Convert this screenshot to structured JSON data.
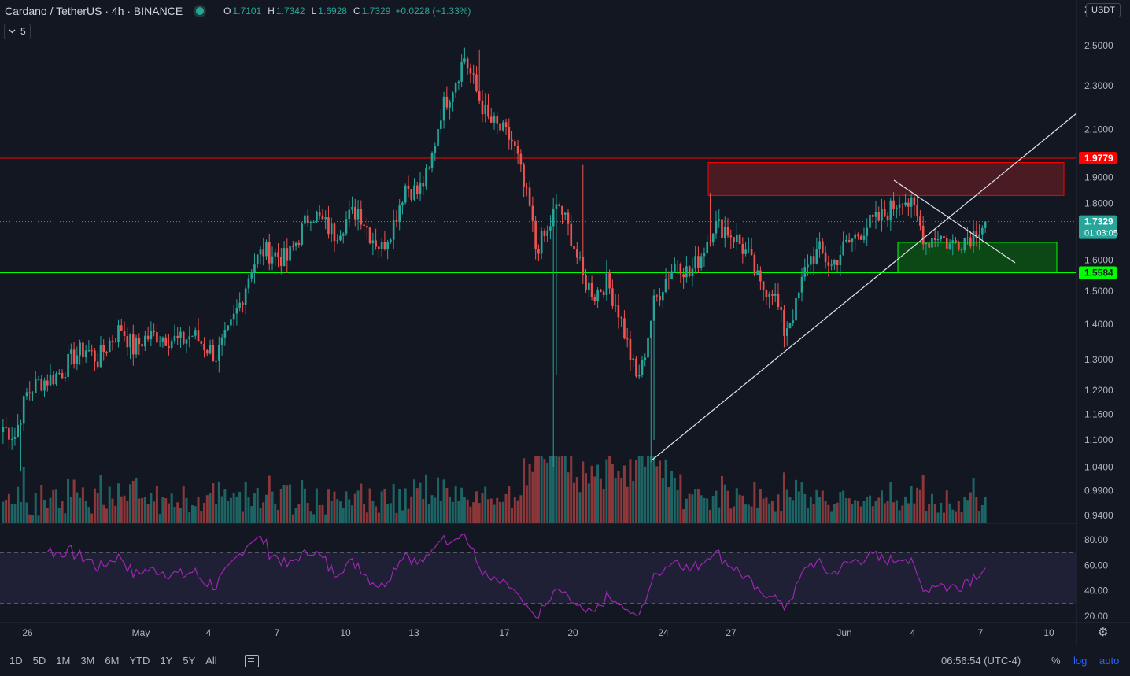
{
  "legend": {
    "symbol": "Cardano / TetherUS · 4h · BINANCE",
    "o_label": "O",
    "o_value": "1.7101",
    "h_label": "H",
    "h_value": "1.7342",
    "l_label": "L",
    "l_value": "1.6928",
    "c_label": "C",
    "c_value": "1.7329",
    "change": "+0.0228 (+1.33%)"
  },
  "volume_badge": "5",
  "currency_button": "USDT",
  "axis_top_label": "2",
  "price_axis": {
    "ticks": [
      "2.5000",
      "2.3000",
      "2.1000",
      "1.9000",
      "1.8000",
      "1.6000",
      "1.5000",
      "1.4000",
      "1.3000",
      "1.2200",
      "1.1600",
      "1.1000",
      "1.0400",
      "0.9900",
      "0.9400"
    ],
    "tick_values": [
      2.5,
      2.3,
      2.1,
      1.9,
      1.8,
      1.6,
      1.5,
      1.4,
      1.3,
      1.22,
      1.16,
      1.1,
      1.04,
      0.99,
      0.94
    ],
    "scale": "log"
  },
  "price_labels": {
    "resistance": "1.9779",
    "current_price": "1.7329",
    "countdown": "01:03:05",
    "support": "1.5584"
  },
  "rsi_axis": {
    "ticks": [
      "80.00",
      "60.00",
      "40.00",
      "20.00"
    ],
    "tick_values": [
      80,
      60,
      40,
      20
    ],
    "upper": 70,
    "lower": 30
  },
  "time_axis": [
    "26",
    "May",
    "4",
    "7",
    "10",
    "13",
    "17",
    "20",
    "24",
    "27",
    "Jun",
    "4",
    "7",
    "10"
  ],
  "bottom_bar": {
    "ranges": [
      "1D",
      "5D",
      "1M",
      "3M",
      "6M",
      "YTD",
      "1Y",
      "5Y",
      "All"
    ],
    "time": "06:56:54 (UTC-4)",
    "percent": "%",
    "log": "log",
    "auto": "auto"
  },
  "colors": {
    "background": "#131722",
    "up": "#26a69a",
    "down": "#ef5350",
    "resistance": "#ff0000",
    "support": "#00ff00",
    "rsi": "#9c27b0"
  },
  "icons": [
    "chevron-down-icon",
    "calendar-range-icon",
    "gear-icon"
  ],
  "chart_data": {
    "type": "candlestick",
    "symbol": "ADA/USDT",
    "interval": "4h",
    "exchange": "BINANCE",
    "price_range": [
      0.92,
      2.7
    ],
    "anchors": [
      [
        0,
        1.13
      ],
      [
        4,
        1.11
      ],
      [
        8,
        1.21
      ],
      [
        12,
        1.24
      ],
      [
        16,
        1.25
      ],
      [
        20,
        1.27
      ],
      [
        24,
        1.31
      ],
      [
        28,
        1.33
      ],
      [
        32,
        1.3
      ],
      [
        36,
        1.35
      ],
      [
        40,
        1.39
      ],
      [
        44,
        1.33
      ],
      [
        48,
        1.36
      ],
      [
        52,
        1.37
      ],
      [
        56,
        1.36
      ],
      [
        60,
        1.35
      ],
      [
        64,
        1.37
      ],
      [
        68,
        1.34
      ],
      [
        72,
        1.31
      ],
      [
        76,
        1.37
      ],
      [
        80,
        1.46
      ],
      [
        84,
        1.58
      ],
      [
        88,
        1.63
      ],
      [
        92,
        1.62
      ],
      [
        96,
        1.6
      ],
      [
        100,
        1.68
      ],
      [
        104,
        1.77
      ],
      [
        108,
        1.73
      ],
      [
        112,
        1.69
      ],
      [
        116,
        1.74
      ],
      [
        120,
        1.78
      ],
      [
        124,
        1.69
      ],
      [
        128,
        1.64
      ],
      [
        132,
        1.73
      ],
      [
        136,
        1.87
      ],
      [
        140,
        1.84
      ],
      [
        144,
        1.92
      ],
      [
        148,
        2.18
      ],
      [
        152,
        2.3
      ],
      [
        156,
        2.44
      ],
      [
        160,
        2.27
      ],
      [
        164,
        2.14
      ],
      [
        168,
        2.1
      ],
      [
        172,
        2.05
      ],
      [
        174,
        1.97
      ],
      [
        176,
        1.86
      ],
      [
        178,
        1.78
      ],
      [
        180,
        1.64
      ],
      [
        184,
        1.69
      ],
      [
        186,
        1.76
      ],
      [
        188,
        1.79
      ],
      [
        192,
        1.68
      ],
      [
        196,
        1.54
      ],
      [
        200,
        1.49
      ],
      [
        204,
        1.53
      ],
      [
        208,
        1.44
      ],
      [
        212,
        1.31
      ],
      [
        214,
        1.25
      ],
      [
        216,
        1.28
      ],
      [
        220,
        1.46
      ],
      [
        224,
        1.54
      ],
      [
        228,
        1.6
      ],
      [
        232,
        1.55
      ],
      [
        236,
        1.62
      ],
      [
        240,
        1.72
      ],
      [
        244,
        1.71
      ],
      [
        248,
        1.67
      ],
      [
        252,
        1.61
      ],
      [
        256,
        1.51
      ],
      [
        260,
        1.51
      ],
      [
        264,
        1.38
      ],
      [
        268,
        1.45
      ],
      [
        272,
        1.6
      ],
      [
        276,
        1.63
      ],
      [
        280,
        1.58
      ],
      [
        284,
        1.64
      ],
      [
        288,
        1.68
      ],
      [
        292,
        1.72
      ],
      [
        296,
        1.74
      ],
      [
        300,
        1.78
      ],
      [
        304,
        1.83
      ],
      [
        308,
        1.77
      ],
      [
        312,
        1.66
      ],
      [
        316,
        1.69
      ],
      [
        320,
        1.65
      ],
      [
        324,
        1.67
      ],
      [
        328,
        1.69
      ],
      [
        330,
        1.72
      ],
      [
        332,
        1.73
      ]
    ],
    "annotations": {
      "resistance_level": 1.9779,
      "support_level": 1.5584,
      "resistance_zone": [
        1.83,
        1.96
      ],
      "support_zone": [
        1.56,
        1.66
      ],
      "current_price": 1.7329
    },
    "rsi": {
      "period": 14,
      "overbought": 70,
      "oversold": 30,
      "last": 58
    }
  }
}
